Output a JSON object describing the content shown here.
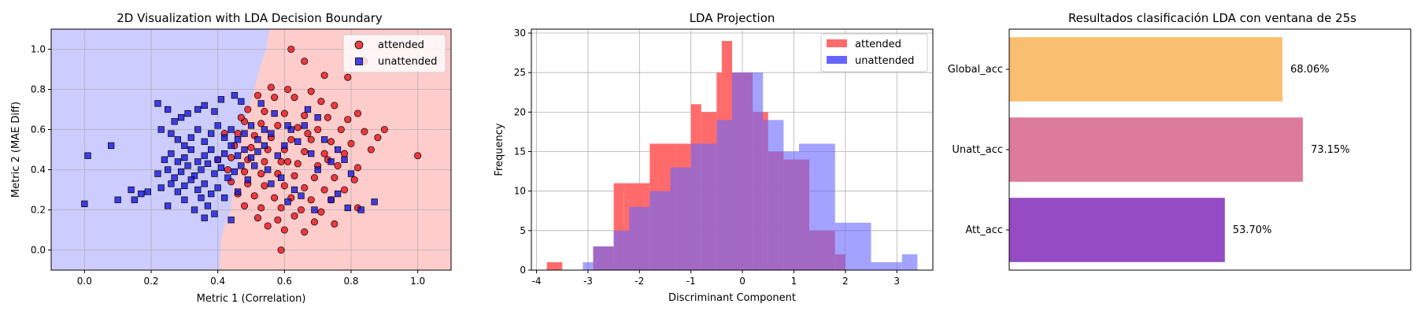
{
  "chart_data": [
    {
      "type": "scatter",
      "title": "2D Visualization with LDA Decision Boundary",
      "xlabel": "Metric 1 (Correlation)",
      "ylabel": "Metric 2 (MAE Diff)",
      "xlim": [
        -0.1,
        1.1
      ],
      "ylim": [
        -0.1,
        1.1
      ],
      "xticks": [
        "0.0",
        "0.2",
        "0.4",
        "0.6",
        "0.8",
        "1.0"
      ],
      "yticks": [
        "0.0",
        "0.2",
        "0.4",
        "0.6",
        "0.8",
        "1.0"
      ],
      "grid": true,
      "legend_position": "top-right",
      "background_regions": {
        "unattended_color": "#ccccff",
        "attended_color": "#ffcccc"
      },
      "series": [
        {
          "name": "attended",
          "marker": "circle",
          "color": "#e8131c",
          "points": [
            [
              0.62,
              1.0
            ],
            [
              0.66,
              0.94
            ],
            [
              0.84,
              0.94
            ],
            [
              0.72,
              0.87
            ],
            [
              0.79,
              0.86
            ],
            [
              0.56,
              0.81
            ],
            [
              0.61,
              0.8
            ],
            [
              0.68,
              0.79
            ],
            [
              0.52,
              0.77
            ],
            [
              0.57,
              0.76
            ],
            [
              0.63,
              0.76
            ],
            [
              0.71,
              0.74
            ],
            [
              0.75,
              0.72
            ],
            [
              0.82,
              0.68
            ],
            [
              0.49,
              0.7
            ],
            [
              0.54,
              0.69
            ],
            [
              0.6,
              0.68
            ],
            [
              0.66,
              0.67
            ],
            [
              0.73,
              0.66
            ],
            [
              0.79,
              0.65
            ],
            [
              0.48,
              0.64
            ],
            [
              0.53,
              0.63
            ],
            [
              0.58,
              0.62
            ],
            [
              0.64,
              0.61
            ],
            [
              0.7,
              0.6
            ],
            [
              0.77,
              0.6
            ],
            [
              0.84,
              0.59
            ],
            [
              0.46,
              0.58
            ],
            [
              0.51,
              0.57
            ],
            [
              0.56,
              0.56
            ],
            [
              0.62,
              0.55
            ],
            [
              0.68,
              0.55
            ],
            [
              0.74,
              0.54
            ],
            [
              0.8,
              0.53
            ],
            [
              0.88,
              0.56
            ],
            [
              0.45,
              0.52
            ],
            [
              0.5,
              0.51
            ],
            [
              0.55,
              0.5
            ],
            [
              0.6,
              0.5
            ],
            [
              0.66,
              0.49
            ],
            [
              0.72,
              0.48
            ],
            [
              0.78,
              0.48
            ],
            [
              0.86,
              0.5
            ],
            [
              0.44,
              0.46
            ],
            [
              0.49,
              0.45
            ],
            [
              0.54,
              0.44
            ],
            [
              0.59,
              0.44
            ],
            [
              0.64,
              0.43
            ],
            [
              0.7,
              0.42
            ],
            [
              0.76,
              0.42
            ],
            [
              0.82,
              0.41
            ],
            [
              0.43,
              0.4
            ],
            [
              0.48,
              0.39
            ],
            [
              0.53,
              0.38
            ],
            [
              0.58,
              0.38
            ],
            [
              0.63,
              0.37
            ],
            [
              0.69,
              0.36
            ],
            [
              0.75,
              0.36
            ],
            [
              0.81,
              0.35
            ],
            [
              0.44,
              0.34
            ],
            [
              0.49,
              0.33
            ],
            [
              0.54,
              0.32
            ],
            [
              0.6,
              0.32
            ],
            [
              0.66,
              0.31
            ],
            [
              0.72,
              0.3
            ],
            [
              0.78,
              0.3
            ],
            [
              0.46,
              0.28
            ],
            [
              0.51,
              0.27
            ],
            [
              0.57,
              0.26
            ],
            [
              0.62,
              0.26
            ],
            [
              0.68,
              0.25
            ],
            [
              0.74,
              0.25
            ],
            [
              0.48,
              0.22
            ],
            [
              0.53,
              0.21
            ],
            [
              0.59,
              0.21
            ],
            [
              0.65,
              0.2
            ],
            [
              0.71,
              0.19
            ],
            [
              0.82,
              0.21
            ],
            [
              0.52,
              0.16
            ],
            [
              0.58,
              0.15
            ],
            [
              0.63,
              0.17
            ],
            [
              0.69,
              0.14
            ],
            [
              0.75,
              0.13
            ],
            [
              0.6,
              0.1
            ],
            [
              0.66,
              0.09
            ],
            [
              0.55,
              0.12
            ],
            [
              0.59,
              0.0
            ],
            [
              0.4,
              0.45
            ],
            [
              0.42,
              0.58
            ],
            [
              0.47,
              0.66
            ],
            [
              1.0,
              0.47
            ],
            [
              0.9,
              0.6
            ],
            [
              0.61,
              0.44
            ],
            [
              0.67,
              0.58
            ],
            [
              0.73,
              0.45
            ]
          ]
        },
        {
          "name": "unattended",
          "marker": "square",
          "color": "#1717e0",
          "points": [
            [
              0.0,
              0.23
            ],
            [
              0.01,
              0.47
            ],
            [
              0.08,
              0.52
            ],
            [
              0.1,
              0.25
            ],
            [
              0.14,
              0.3
            ],
            [
              0.15,
              0.25
            ],
            [
              0.17,
              0.28
            ],
            [
              0.19,
              0.29
            ],
            [
              0.22,
              0.73
            ],
            [
              0.25,
              0.7
            ],
            [
              0.27,
              0.64
            ],
            [
              0.29,
              0.66
            ],
            [
              0.31,
              0.68
            ],
            [
              0.34,
              0.7
            ],
            [
              0.36,
              0.72
            ],
            [
              0.39,
              0.69
            ],
            [
              0.41,
              0.75
            ],
            [
              0.45,
              0.77
            ],
            [
              0.47,
              0.74
            ],
            [
              0.23,
              0.6
            ],
            [
              0.26,
              0.58
            ],
            [
              0.28,
              0.55
            ],
            [
              0.3,
              0.52
            ],
            [
              0.32,
              0.56
            ],
            [
              0.34,
              0.6
            ],
            [
              0.36,
              0.54
            ],
            [
              0.38,
              0.58
            ],
            [
              0.4,
              0.62
            ],
            [
              0.42,
              0.56
            ],
            [
              0.44,
              0.6
            ],
            [
              0.46,
              0.55
            ],
            [
              0.48,
              0.58
            ],
            [
              0.5,
              0.62
            ],
            [
              0.52,
              0.55
            ],
            [
              0.54,
              0.6
            ],
            [
              0.56,
              0.58
            ],
            [
              0.24,
              0.45
            ],
            [
              0.26,
              0.48
            ],
            [
              0.28,
              0.44
            ],
            [
              0.3,
              0.46
            ],
            [
              0.32,
              0.5
            ],
            [
              0.34,
              0.44
            ],
            [
              0.36,
              0.47
            ],
            [
              0.38,
              0.5
            ],
            [
              0.4,
              0.45
            ],
            [
              0.42,
              0.48
            ],
            [
              0.44,
              0.52
            ],
            [
              0.46,
              0.47
            ],
            [
              0.48,
              0.5
            ],
            [
              0.5,
              0.46
            ],
            [
              0.52,
              0.49
            ],
            [
              0.54,
              0.52
            ],
            [
              0.22,
              0.38
            ],
            [
              0.25,
              0.4
            ],
            [
              0.27,
              0.36
            ],
            [
              0.29,
              0.39
            ],
            [
              0.31,
              0.42
            ],
            [
              0.33,
              0.37
            ],
            [
              0.35,
              0.4
            ],
            [
              0.37,
              0.43
            ],
            [
              0.39,
              0.38
            ],
            [
              0.41,
              0.41
            ],
            [
              0.43,
              0.36
            ],
            [
              0.45,
              0.39
            ],
            [
              0.47,
              0.42
            ],
            [
              0.23,
              0.31
            ],
            [
              0.26,
              0.33
            ],
            [
              0.28,
              0.29
            ],
            [
              0.3,
              0.32
            ],
            [
              0.32,
              0.35
            ],
            [
              0.34,
              0.3
            ],
            [
              0.36,
              0.33
            ],
            [
              0.38,
              0.28
            ],
            [
              0.4,
              0.31
            ],
            [
              0.25,
              0.22
            ],
            [
              0.3,
              0.25
            ],
            [
              0.33,
              0.2
            ],
            [
              0.35,
              0.26
            ],
            [
              0.37,
              0.22
            ],
            [
              0.39,
              0.18
            ],
            [
              0.42,
              0.26
            ],
            [
              0.36,
              0.16
            ],
            [
              0.44,
              0.15
            ],
            [
              0.51,
              0.42
            ],
            [
              0.55,
              0.4
            ],
            [
              0.58,
              0.47
            ],
            [
              0.6,
              0.52
            ],
            [
              0.62,
              0.6
            ],
            [
              0.64,
              0.54
            ],
            [
              0.66,
              0.62
            ],
            [
              0.68,
              0.48
            ],
            [
              0.7,
              0.4
            ],
            [
              0.72,
              0.55
            ],
            [
              0.74,
              0.44
            ],
            [
              0.76,
              0.5
            ],
            [
              0.78,
              0.45
            ],
            [
              0.8,
              0.38
            ],
            [
              0.59,
              0.36
            ],
            [
              0.63,
              0.3
            ],
            [
              0.67,
              0.7
            ],
            [
              0.7,
              0.66
            ],
            [
              0.61,
              0.62
            ],
            [
              0.65,
              0.27
            ],
            [
              0.69,
              0.2
            ],
            [
              0.74,
              0.25
            ],
            [
              0.76,
              0.28
            ],
            [
              0.79,
              0.21
            ],
            [
              0.83,
              0.2
            ],
            [
              0.87,
              0.24
            ],
            [
              0.53,
              0.73
            ],
            [
              0.57,
              0.68
            ],
            [
              0.49,
              0.35
            ],
            [
              0.56,
              0.33
            ],
            [
              0.61,
              0.24
            ],
            [
              0.46,
              0.29
            ]
          ]
        }
      ]
    },
    {
      "type": "histogram",
      "title": "LDA Projection",
      "xlabel": "Discriminant Component",
      "ylabel": "Frequency",
      "xlim": [
        -4.1,
        3.7
      ],
      "ylim": [
        0,
        30.5
      ],
      "xticks": [
        "-4",
        "-3",
        "-2",
        "-1",
        "0",
        "1",
        "2",
        "3"
      ],
      "yticks": [
        "0",
        "5",
        "10",
        "15",
        "20",
        "25",
        "30"
      ],
      "grid": true,
      "legend_position": "top-right",
      "series": [
        {
          "name": "attended",
          "color": "#ff6b6b",
          "bins": [
            [
              -3.8,
              -3.5,
              1
            ],
            [
              -3.5,
              -3.2,
              0
            ],
            [
              -3.2,
              -2.9,
              0
            ],
            [
              -2.9,
              -2.5,
              3
            ],
            [
              -2.5,
              -2.3,
              11
            ],
            [
              -2.3,
              -1.8,
              11
            ],
            [
              -1.8,
              -1.3,
              16
            ],
            [
              -1.3,
              -1.0,
              16
            ],
            [
              -1.0,
              -0.8,
              21
            ],
            [
              -0.8,
              -0.5,
              20
            ],
            [
              -0.5,
              -0.4,
              25
            ],
            [
              -0.4,
              -0.2,
              29
            ],
            [
              -0.2,
              0.2,
              25
            ],
            [
              0.2,
              0.5,
              20
            ],
            [
              0.5,
              0.8,
              15
            ],
            [
              0.8,
              1.0,
              14
            ],
            [
              1.0,
              1.3,
              14
            ],
            [
              1.3,
              1.8,
              5
            ],
            [
              1.8,
              2.0,
              2
            ],
            [
              2.0,
              2.2,
              0
            ]
          ]
        },
        {
          "name": "unattended",
          "color": "#6666ff",
          "bins": [
            [
              -3.1,
              -2.9,
              1
            ],
            [
              -2.9,
              -2.5,
              3
            ],
            [
              -2.5,
              -2.2,
              5
            ],
            [
              -2.2,
              -1.8,
              8
            ],
            [
              -1.8,
              -1.4,
              10
            ],
            [
              -1.4,
              -1.0,
              13
            ],
            [
              -1.0,
              -0.5,
              16
            ],
            [
              -0.5,
              -0.2,
              19
            ],
            [
              -0.2,
              0.4,
              25
            ],
            [
              0.4,
              0.8,
              19
            ],
            [
              0.8,
              1.1,
              15
            ],
            [
              1.1,
              1.8,
              16
            ],
            [
              1.8,
              2.0,
              6
            ],
            [
              2.0,
              2.5,
              6
            ],
            [
              2.5,
              3.1,
              1
            ],
            [
              3.1,
              3.4,
              2
            ]
          ]
        }
      ]
    },
    {
      "type": "bar",
      "orientation": "horizontal",
      "title": "Resultados clasificación LDA con ventana de 25s",
      "categories": [
        "Global_acc",
        "Unatt_acc",
        "Att_acc"
      ],
      "values": [
        68.06,
        73.15,
        53.7
      ],
      "labels": [
        "68.06%",
        "73.15%",
        "53.70%"
      ],
      "colors": [
        "#f9be6f",
        "#dc7b9b",
        "#944bc4"
      ],
      "xlim": [
        0,
        100
      ],
      "grid": false
    }
  ]
}
